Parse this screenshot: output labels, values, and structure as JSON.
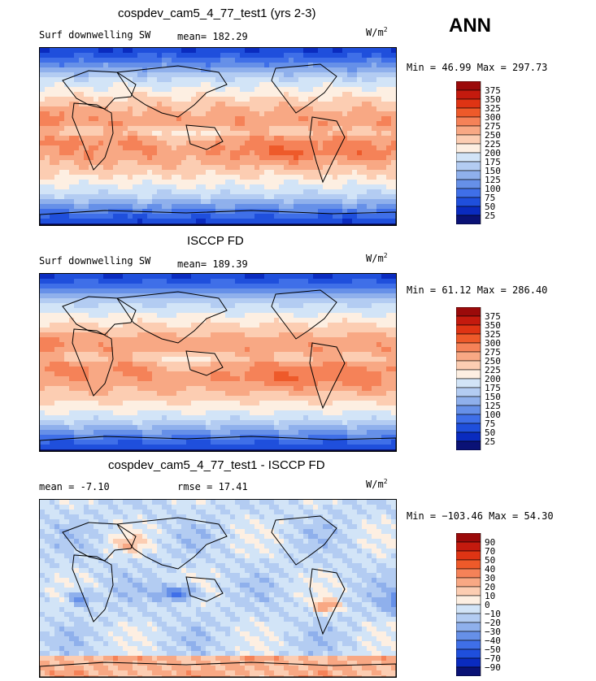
{
  "season": "ANN",
  "units_base": "W/m",
  "units_exp": "2",
  "panels": [
    {
      "title": "cospdev_cam5_4_77_test1 (yrs 2-3)",
      "variable": "Surf downwelling SW",
      "mean_label": "mean=",
      "mean_value": "182.29",
      "minmax": "Min =  46.99 Max = 297.73"
    },
    {
      "title": "ISCCP FD",
      "variable": "Surf downwelling SW",
      "mean_label": "mean=",
      "mean_value": "189.39",
      "minmax": "Min =  61.12 Max = 286.40"
    },
    {
      "title": "cospdev_cam5_4_77_test1 - ISCCP FD",
      "mean_label": "mean =",
      "mean_value": "-7.10",
      "rmse_label": "rmse =",
      "rmse_value": "17.41",
      "minmax": "Min = −103.46 Max =  54.30"
    }
  ],
  "chart_data": [
    {
      "type": "heatmap",
      "title": "cospdev_cam5_4_77_test1 (yrs 2-3)",
      "variable": "Surf downwelling SW",
      "units": "W/m^2",
      "mean": 182.29,
      "min": 46.99,
      "max": 297.73,
      "colorbar_levels": [
        "375",
        "350",
        "325",
        "300",
        "275",
        "250",
        "225",
        "200",
        "175",
        "150",
        "125",
        "100",
        "75",
        "50",
        "25"
      ],
      "colorbar_colors": [
        "#9b0a0a",
        "#c41a0e",
        "#df3414",
        "#ee5a2a",
        "#f58258",
        "#f8a884",
        "#fccdb2",
        "#fdefe2",
        "#d2e4f7",
        "#b3ccf2",
        "#8fb0ec",
        "#6690e8",
        "#3f6fe8",
        "#1f4fdc",
        "#0a2bbf",
        "#0a1276"
      ]
    },
    {
      "type": "heatmap",
      "title": "ISCCP FD",
      "variable": "Surf downwelling SW",
      "units": "W/m^2",
      "mean": 189.39,
      "min": 61.12,
      "max": 286.4,
      "colorbar_levels": [
        "375",
        "350",
        "325",
        "300",
        "275",
        "250",
        "225",
        "200",
        "175",
        "150",
        "125",
        "100",
        "75",
        "50",
        "25"
      ],
      "colorbar_colors": [
        "#9b0a0a",
        "#c41a0e",
        "#df3414",
        "#ee5a2a",
        "#f58258",
        "#f8a884",
        "#fccdb2",
        "#fdefe2",
        "#d2e4f7",
        "#b3ccf2",
        "#8fb0ec",
        "#6690e8",
        "#3f6fe8",
        "#1f4fdc",
        "#0a2bbf",
        "#0a1276"
      ]
    },
    {
      "type": "heatmap",
      "title": "cospdev_cam5_4_77_test1 - ISCCP FD",
      "units": "W/m^2",
      "mean": -7.1,
      "rmse": 17.41,
      "min": -103.46,
      "max": 54.3,
      "colorbar_levels": [
        "90",
        "70",
        "50",
        "40",
        "30",
        "20",
        "10",
        "0",
        "−10",
        "−20",
        "−30",
        "−40",
        "−50",
        "−70",
        "−90"
      ],
      "colorbar_colors": [
        "#9b0a0a",
        "#c41a0e",
        "#df3414",
        "#ee5a2a",
        "#f58258",
        "#f8a884",
        "#fccdb2",
        "#fdefe2",
        "#d2e4f7",
        "#b3ccf2",
        "#8fb0ec",
        "#6690e8",
        "#3f6fe8",
        "#1f4fdc",
        "#0a2bbf",
        "#0a1276"
      ]
    }
  ]
}
